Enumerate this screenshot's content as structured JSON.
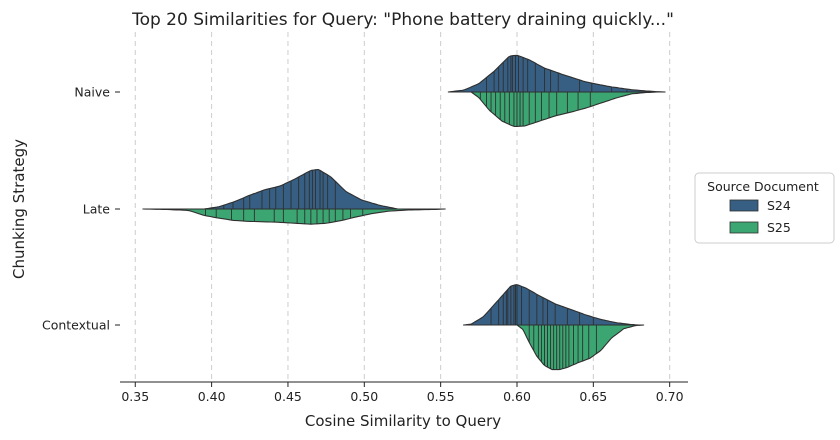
{
  "chart_data": {
    "type": "violin",
    "title": "Top 20 Similarities for Query: \"Phone battery draining quickly...\"",
    "xlabel": "Cosine Similarity to Query",
    "ylabel": "Chunking Strategy",
    "xlim": [
      0.34,
      0.712
    ],
    "xticks": [
      0.35,
      0.4,
      0.45,
      0.5,
      0.55,
      0.6,
      0.65,
      0.7
    ],
    "xtick_labels": [
      "0.35",
      "0.40",
      "0.45",
      "0.50",
      "0.55",
      "0.60",
      "0.65",
      "0.70"
    ],
    "categories": [
      "Naive",
      "Late",
      "Contextual"
    ],
    "grid": "x-dashed",
    "legend": {
      "title": "Source Document",
      "placement": "center-right",
      "entries": [
        {
          "name": "S24",
          "color": "#365f83"
        },
        {
          "name": "S25",
          "color": "#3ba672"
        }
      ]
    },
    "series": [
      {
        "name": "S24",
        "side": "upper",
        "color": "#365f83",
        "violins": [
          {
            "category": "Naive",
            "density": [
              [
                0.555,
                0
              ],
              [
                0.565,
                0.04
              ],
              [
                0.575,
                0.18
              ],
              [
                0.585,
                0.45
              ],
              [
                0.595,
                0.78
              ],
              [
                0.6,
                0.8
              ],
              [
                0.608,
                0.7
              ],
              [
                0.618,
                0.52
              ],
              [
                0.63,
                0.38
              ],
              [
                0.645,
                0.22
              ],
              [
                0.66,
                0.12
              ],
              [
                0.675,
                0.05
              ],
              [
                0.69,
                0.01
              ],
              [
                0.697,
                0
              ]
            ],
            "points": [
              0.58,
              0.585,
              0.588,
              0.591,
              0.594,
              0.596,
              0.597,
              0.599,
              0.601,
              0.604,
              0.607,
              0.612,
              0.618,
              0.622,
              0.627,
              0.641,
              0.649,
              0.662,
              0.672
            ]
          },
          {
            "category": "Late",
            "density": [
              [
                0.395,
                0
              ],
              [
                0.405,
                0.05
              ],
              [
                0.415,
                0.16
              ],
              [
                0.425,
                0.3
              ],
              [
                0.435,
                0.42
              ],
              [
                0.445,
                0.5
              ],
              [
                0.455,
                0.66
              ],
              [
                0.465,
                0.84
              ],
              [
                0.47,
                0.86
              ],
              [
                0.478,
                0.7
              ],
              [
                0.488,
                0.38
              ],
              [
                0.498,
                0.2
              ],
              [
                0.51,
                0.08
              ],
              [
                0.522,
                0
              ]
            ],
            "points": [
              0.408,
              0.414,
              0.421,
              0.425,
              0.433,
              0.438,
              0.442,
              0.447,
              0.452,
              0.457,
              0.461,
              0.464,
              0.466,
              0.468,
              0.471,
              0.473,
              0.476,
              0.481
            ]
          },
          {
            "category": "Contextual",
            "density": [
              [
                0.565,
                0
              ],
              [
                0.57,
                0.02
              ],
              [
                0.578,
                0.18
              ],
              [
                0.588,
                0.55
              ],
              [
                0.596,
                0.85
              ],
              [
                0.6,
                0.88
              ],
              [
                0.606,
                0.8
              ],
              [
                0.615,
                0.63
              ],
              [
                0.625,
                0.46
              ],
              [
                0.635,
                0.34
              ],
              [
                0.645,
                0.22
              ],
              [
                0.655,
                0.12
              ],
              [
                0.665,
                0.05
              ],
              [
                0.675,
                0.01
              ],
              [
                0.68,
                0
              ]
            ],
            "points": [
              0.583,
              0.588,
              0.591,
              0.593,
              0.594,
              0.596,
              0.598,
              0.599,
              0.6,
              0.603,
              0.608,
              0.613,
              0.617,
              0.62,
              0.625,
              0.633,
              0.641,
              0.65
            ]
          }
        ]
      },
      {
        "name": "S25",
        "side": "lower",
        "color": "#3ba672",
        "violins": [
          {
            "category": "Naive",
            "density": [
              [
                0.57,
                0
              ],
              [
                0.575,
                0.12
              ],
              [
                0.582,
                0.4
              ],
              [
                0.59,
                0.63
              ],
              [
                0.598,
                0.75
              ],
              [
                0.605,
                0.74
              ],
              [
                0.615,
                0.63
              ],
              [
                0.625,
                0.52
              ],
              [
                0.635,
                0.44
              ],
              [
                0.645,
                0.35
              ],
              [
                0.655,
                0.24
              ],
              [
                0.665,
                0.13
              ],
              [
                0.675,
                0.04
              ],
              [
                0.685,
                0.01
              ],
              [
                0.692,
                0
              ]
            ],
            "points": [
              0.576,
              0.58,
              0.583,
              0.586,
              0.589,
              0.592,
              0.595,
              0.598,
              0.6,
              0.602,
              0.604,
              0.608,
              0.612,
              0.616,
              0.621,
              0.626,
              0.633,
              0.64,
              0.648
            ]
          },
          {
            "category": "Late",
            "density": [
              [
                0.355,
                0
              ],
              [
                0.37,
                0.01
              ],
              [
                0.385,
                0.03
              ],
              [
                0.395,
                0.14
              ],
              [
                0.405,
                0.2
              ],
              [
                0.415,
                0.25
              ],
              [
                0.425,
                0.27
              ],
              [
                0.435,
                0.28
              ],
              [
                0.445,
                0.29
              ],
              [
                0.455,
                0.31
              ],
              [
                0.465,
                0.33
              ],
              [
                0.475,
                0.31
              ],
              [
                0.485,
                0.25
              ],
              [
                0.495,
                0.17
              ],
              [
                0.505,
                0.1
              ],
              [
                0.515,
                0.05
              ],
              [
                0.53,
                0.02
              ],
              [
                0.545,
                0.01
              ],
              [
                0.553,
                0
              ]
            ],
            "points": [
              0.396,
              0.403,
              0.413,
              0.421,
              0.428,
              0.441,
              0.447,
              0.456,
              0.461,
              0.465,
              0.469,
              0.473,
              0.477,
              0.481,
              0.486,
              0.491,
              0.499
            ]
          },
          {
            "category": "Contextual",
            "density": [
              [
                0.6,
                0
              ],
              [
                0.604,
                0.1
              ],
              [
                0.608,
                0.38
              ],
              [
                0.613,
                0.68
              ],
              [
                0.618,
                0.88
              ],
              [
                0.623,
                0.97
              ],
              [
                0.628,
                0.97
              ],
              [
                0.633,
                0.92
              ],
              [
                0.64,
                0.82
              ],
              [
                0.648,
                0.72
              ],
              [
                0.655,
                0.55
              ],
              [
                0.662,
                0.28
              ],
              [
                0.67,
                0.08
              ],
              [
                0.678,
                0.01
              ],
              [
                0.683,
                0
              ]
            ],
            "points": [
              0.608,
              0.611,
              0.614,
              0.616,
              0.618,
              0.62,
              0.622,
              0.624,
              0.626,
              0.628,
              0.63,
              0.632,
              0.634,
              0.637,
              0.64,
              0.643,
              0.647,
              0.652
            ]
          }
        ]
      }
    ]
  }
}
